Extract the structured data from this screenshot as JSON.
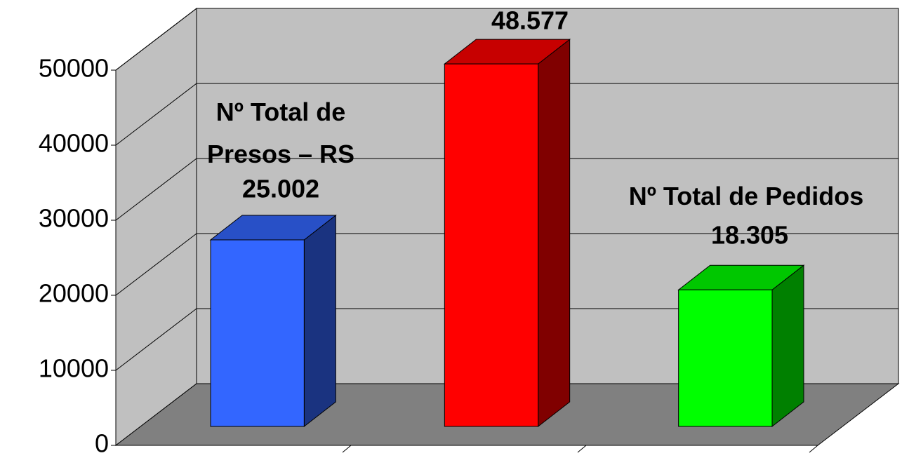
{
  "chart_data": {
    "type": "bar3d",
    "categories": [
      "Nº Total de Presos – RS",
      null,
      "Nº Total de Pedidos"
    ],
    "values": [
      25002,
      48577,
      18305
    ],
    "value_labels": [
      "25.002",
      "48.577",
      "18.305"
    ],
    "colors": [
      "#3366ff",
      "#ff0000",
      "#00ff00"
    ],
    "ylim": [
      0,
      50000
    ],
    "yticks": [
      0,
      10000,
      20000,
      30000,
      40000,
      50000
    ],
    "grid": true
  }
}
